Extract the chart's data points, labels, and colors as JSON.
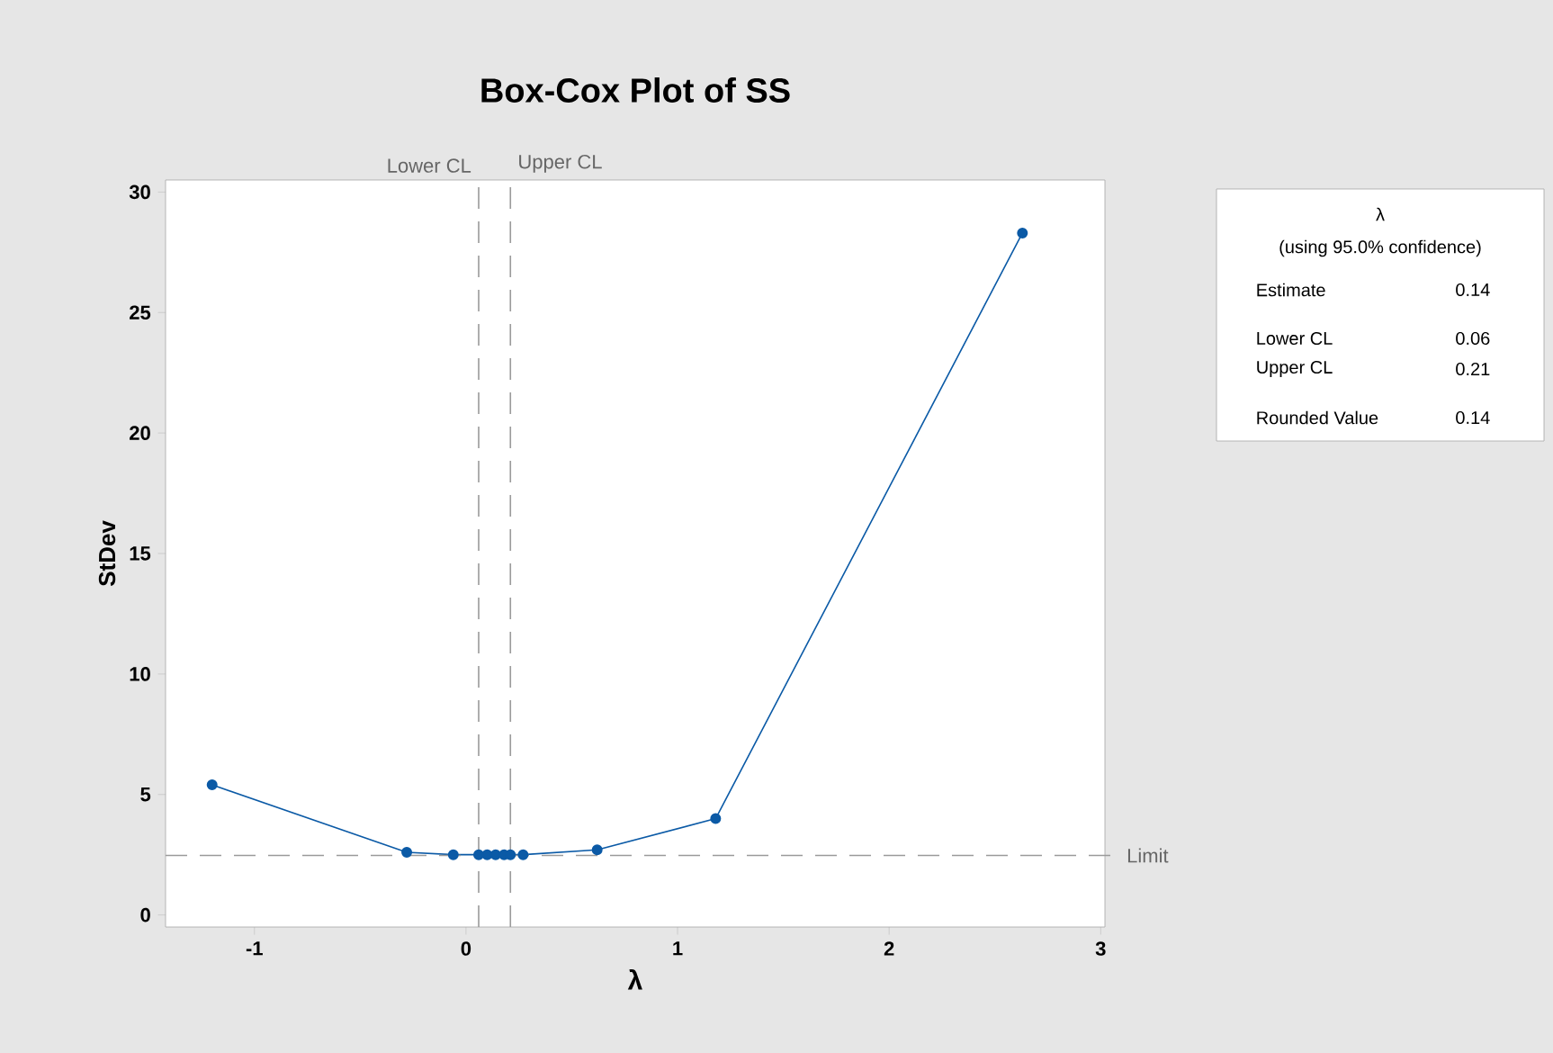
{
  "chart_data": {
    "type": "line",
    "title": "Box-Cox Plot of SS",
    "xlabel": "λ",
    "ylabel": "StDev",
    "x": [
      -1.2,
      -0.28,
      -0.06,
      0.06,
      0.1,
      0.14,
      0.18,
      0.21,
      0.27,
      0.62,
      1.18,
      2.63
    ],
    "series": [
      {
        "color": "#0b5aa6",
        "values": [
          5.4,
          2.6,
          2.5,
          2.5,
          2.5,
          2.5,
          2.5,
          2.5,
          2.5,
          2.7,
          4.0,
          28.3
        ]
      }
    ],
    "marker": "circle",
    "line_style": "solid",
    "grid": false,
    "xlim": [
      -1.42,
      3.02
    ],
    "ylim": [
      -0.5,
      30.5
    ],
    "xticks": [
      -1,
      0,
      1,
      2,
      3
    ],
    "yticks": [
      0,
      5,
      10,
      15,
      20,
      25,
      30
    ],
    "ref_lines": [
      {
        "axis": "x",
        "value": 0.06,
        "label": "Lower CL",
        "color": "#9a9a9a",
        "line_style": "dashed"
      },
      {
        "axis": "x",
        "value": 0.21,
        "label": "Upper CL",
        "color": "#9a9a9a",
        "line_style": "dashed"
      },
      {
        "axis": "y",
        "value": 2.47,
        "label": "Limit",
        "color": "#9a9a9a",
        "line_style": "dashed"
      }
    ],
    "annotations": [
      "λ",
      "(using 95.0% confidence)",
      "Estimate",
      "0.14",
      "Lower CL",
      "0.06",
      "Upper CL",
      "0.21",
      "Rounded Value",
      "0.14"
    ]
  }
}
